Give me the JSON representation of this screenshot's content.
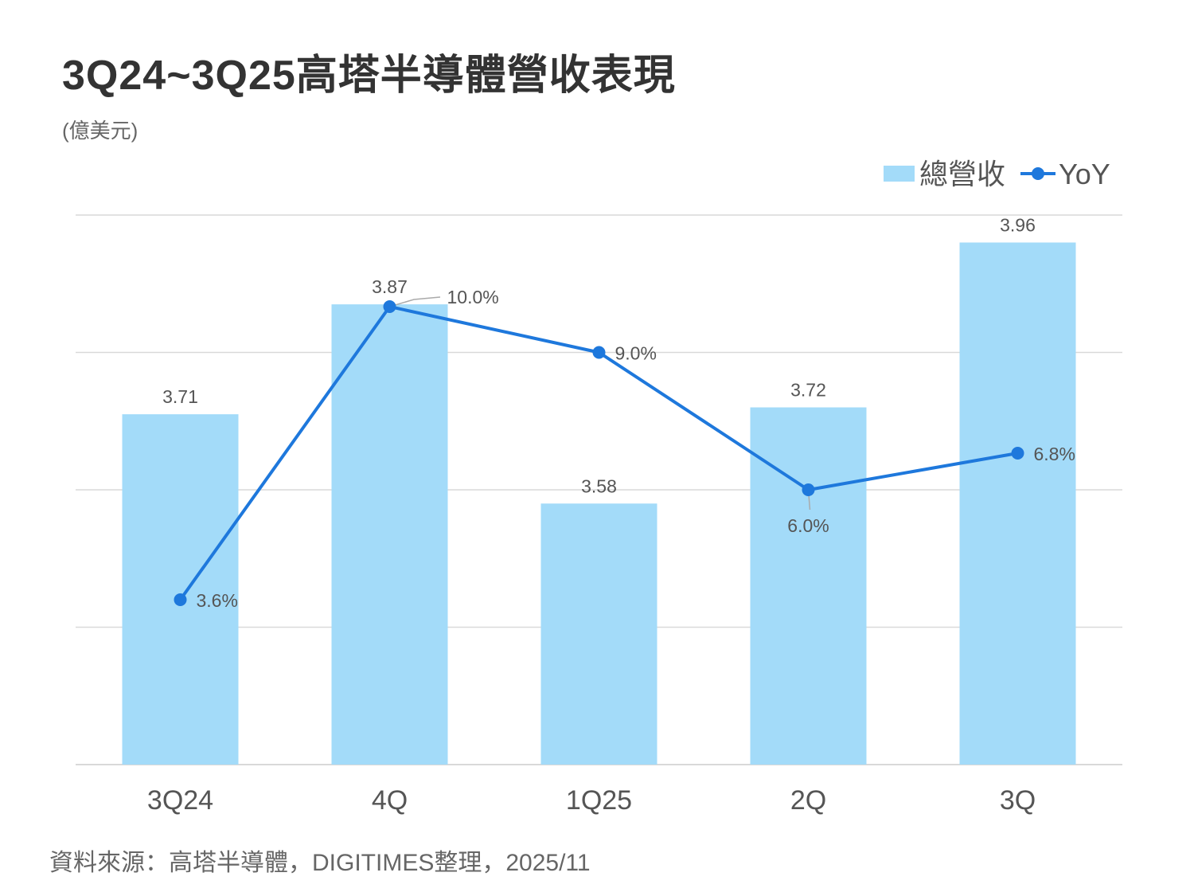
{
  "title": "3Q24~3Q25高塔半導體營收表現",
  "unit": "(億美元)",
  "source": "資料來源：高塔半導體，DIGITIMES整理，2025/11",
  "colors": {
    "bar": "#A3DBF9",
    "line": "#1E78DC",
    "grid": "#D9D9D9",
    "text": "#555555"
  },
  "chart_data": {
    "type": "bar",
    "title": "3Q24~3Q25高塔半導體營收表現",
    "categories": [
      "3Q24",
      "4Q",
      "1Q25",
      "2Q",
      "3Q"
    ],
    "series": [
      {
        "name": "總營收",
        "type": "bar",
        "axis": "left",
        "values": [
          3.71,
          3.87,
          3.58,
          3.72,
          3.96
        ],
        "labels": [
          "3.71",
          "3.87",
          "3.58",
          "3.72",
          "3.96"
        ]
      },
      {
        "name": "YoY",
        "type": "line",
        "axis": "right",
        "values": [
          3.6,
          10.0,
          9.0,
          6.0,
          6.8
        ],
        "labels": [
          "3.6%",
          "10.0%",
          "9.0%",
          "6.0%",
          "6.8%"
        ]
      }
    ],
    "ylim": [
      3.2,
      4.0
    ],
    "y2lim": [
      0,
      12
    ],
    "grid": true,
    "legend": "top-right",
    "ylabel": "(億美元)"
  }
}
